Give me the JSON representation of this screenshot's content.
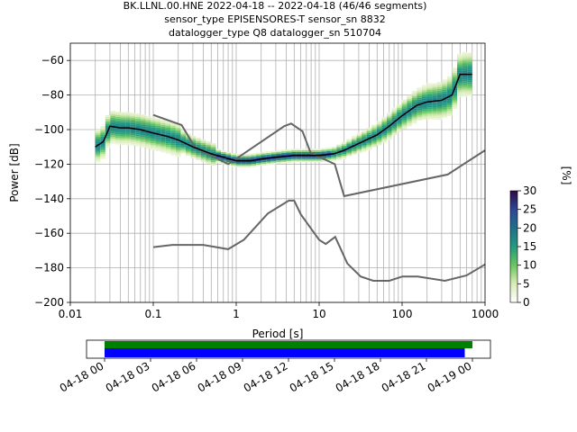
{
  "chart_data": [
    {
      "type": "heatmap",
      "title_lines": [
        "BK.LLNL.00.HNE   2022-04-18 -- 2022-04-18  (46/46 segments)",
        "sensor_type EPISENSORES-T sensor_sn 8832",
        "datalogger_type Q8 datalogger_sn 510704"
      ],
      "xlabel": "Period [s]",
      "ylabel": "Power [dB]",
      "xscale": "log",
      "xlim": [
        0.01,
        1000
      ],
      "ylim": [
        -200,
        -50
      ],
      "xticks": [
        {
          "v": 0.01,
          "label": "0.01"
        },
        {
          "v": 0.1,
          "label": "0.1"
        },
        {
          "v": 1,
          "label": "1"
        },
        {
          "v": 10,
          "label": "10"
        },
        {
          "v": 100,
          "label": "100"
        },
        {
          "v": 1000,
          "label": "1000"
        }
      ],
      "yticks": [
        -200,
        -180,
        -160,
        -140,
        -120,
        -100,
        -80,
        -60
      ],
      "grid": true,
      "mode": {
        "x": [
          0.02,
          0.025,
          0.03,
          0.04,
          0.05,
          0.07,
          0.1,
          0.15,
          0.2,
          0.3,
          0.5,
          0.7,
          1,
          1.5,
          2,
          3,
          5,
          7,
          10,
          15,
          20,
          30,
          50,
          70,
          100,
          150,
          200,
          300,
          400,
          500,
          700
        ],
        "y": [
          -110,
          -107,
          -98,
          -99,
          -99,
          -100,
          -102,
          -104,
          -106,
          -110,
          -114,
          -116,
          -118,
          -118,
          -117,
          -116,
          -115,
          -115,
          -115,
          -114,
          -112,
          -108,
          -103,
          -98,
          -92,
          -86,
          -84,
          -83,
          -80,
          -68,
          -68
        ]
      },
      "nlnm": {
        "x": [
          0.1,
          0.17,
          0.4,
          0.8,
          1.24,
          2.4,
          4.3,
          5,
          6,
          10,
          12,
          15.6,
          21.9,
          31.6,
          45,
          70,
          101,
          154,
          328,
          600,
          1000
        ],
        "y": [
          -168,
          -166.7,
          -166.7,
          -169.2,
          -163.7,
          -148.6,
          -141.1,
          -141.1,
          -149,
          -163.8,
          -166.2,
          -162.1,
          -177.5,
          -185,
          -187.5,
          -187.5,
          -185,
          -185,
          -187.5,
          -184.4,
          -178
        ]
      },
      "nhnm": {
        "x": [
          0.1,
          0.22,
          0.32,
          0.8,
          3.8,
          4.6,
          6.3,
          7.9,
          15.4,
          20,
          354.8,
          1000
        ],
        "y": [
          -91.5,
          -97.4,
          -110.5,
          -120,
          -98,
          -96.5,
          -101,
          -113.5,
          -120,
          -138.5,
          -126,
          -112
        ]
      },
      "colorbar": {
        "label": "[%]",
        "min": 0,
        "max": 30,
        "ticks": [
          0,
          5,
          10,
          15,
          20,
          25,
          30
        ]
      }
    },
    {
      "type": "timeline",
      "xlim": [
        "2022-04-18 00:00",
        "2022-04-19 03:00"
      ],
      "tick_labels": [
        "04-18 00",
        "04-18 03",
        "04-18 06",
        "04-18 09",
        "04-18 12",
        "04-18 15",
        "04-18 18",
        "04-18 21",
        "04-19 00"
      ],
      "bars": [
        {
          "color": "#008000",
          "start": "2022-04-18 00:00",
          "end": "2022-04-19 00:00"
        },
        {
          "color": "#0000ff",
          "start": "2022-04-18 00:00",
          "end": "2022-04-18 23:30"
        }
      ]
    }
  ]
}
